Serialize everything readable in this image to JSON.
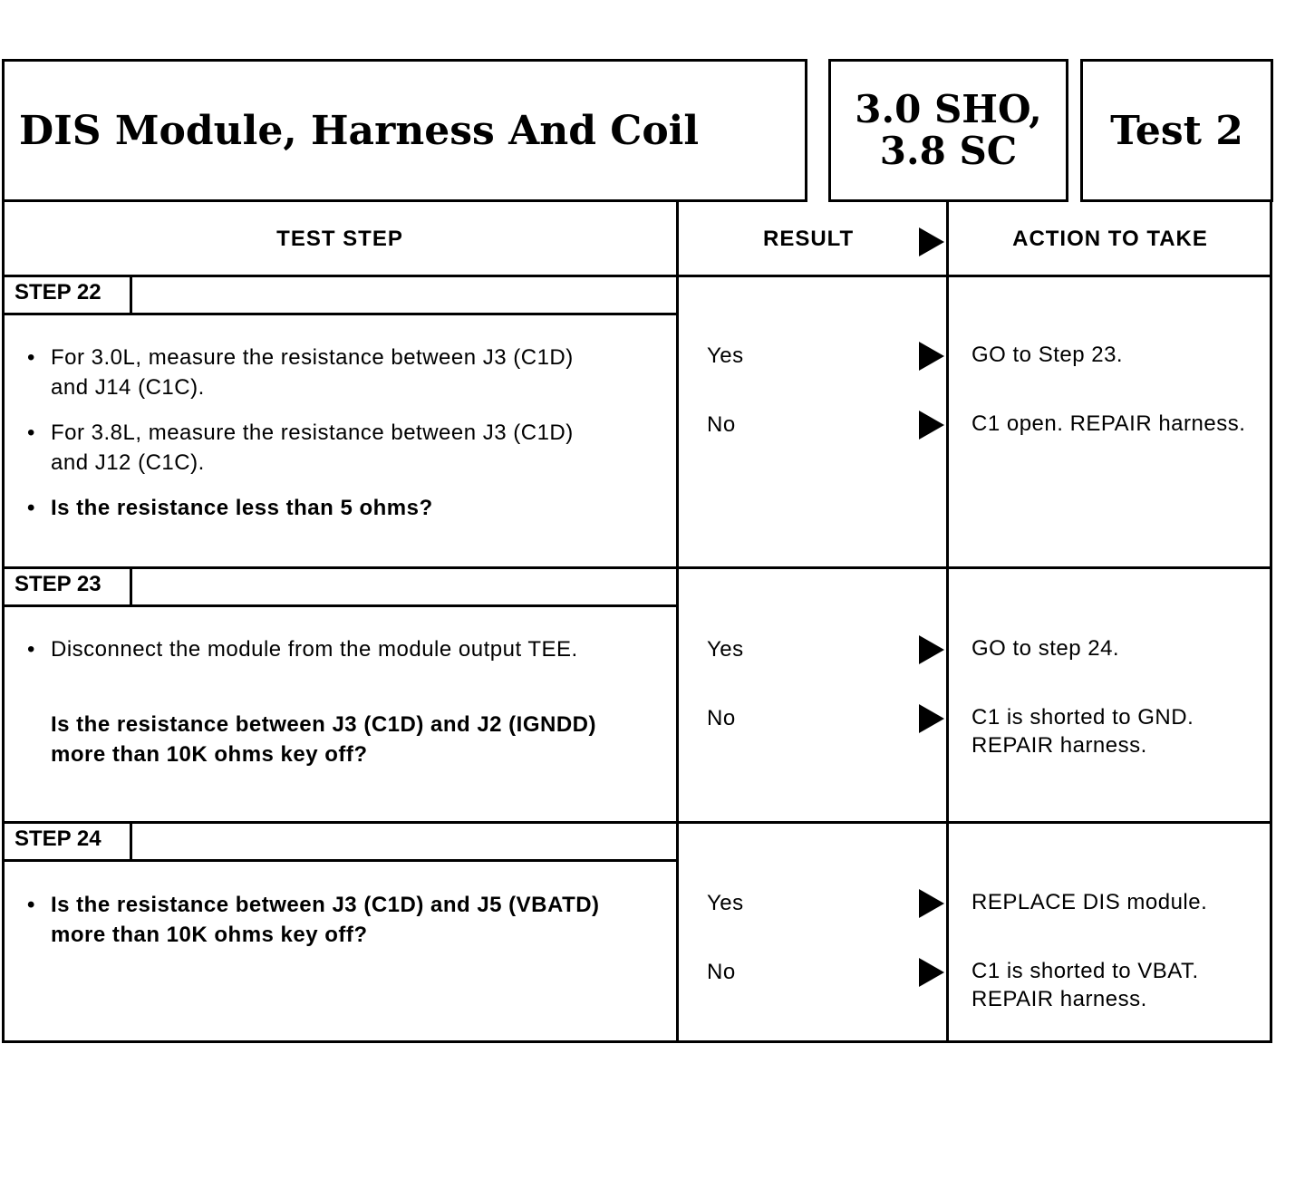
{
  "header": {
    "title": "DIS Module, Harness And Coil",
    "engine_line1": "3.0 SHO,",
    "engine_line2": "3.8 SC",
    "test": "Test 2"
  },
  "columns": {
    "test_step": "TEST STEP",
    "result": "RESULT",
    "action": "ACTION TO TAKE"
  },
  "steps": [
    {
      "label": "STEP 22",
      "items": [
        {
          "text": "For 3.0L, measure the resistance between J3 (C1D) and J14 (C1C).",
          "bold": false
        },
        {
          "text": "For 3.8L, measure the resistance between J3 (C1D) and J12 (C1C).",
          "bold": false
        },
        {
          "text": "Is the resistance less than 5 ohms?",
          "bold": true
        }
      ],
      "results": [
        {
          "result": "Yes",
          "action": "GO to Step 23."
        },
        {
          "result": "No",
          "action": "C1 open. REPAIR harness."
        }
      ]
    },
    {
      "label": "STEP 23",
      "items": [
        {
          "text": "Disconnect the module from the module output TEE.",
          "bold": false
        },
        {
          "text": "Is the resistance between J3 (C1D) and J2 (IGNDD) more than 10K ohms key off?",
          "bold": true
        }
      ],
      "results": [
        {
          "result": "Yes",
          "action": "GO to step 24."
        },
        {
          "result": "No",
          "action": "C1 is shorted to GND. REPAIR harness."
        }
      ]
    },
    {
      "label": "STEP 24",
      "items": [
        {
          "text": "Is the resistance between J3 (C1D) and J5 (VBATD) more than 10K ohms key off?",
          "bold": true
        }
      ],
      "results": [
        {
          "result": "Yes",
          "action": "REPLACE DIS module."
        },
        {
          "result": "No",
          "action": "C1 is shorted to VBAT. REPAIR harness."
        }
      ]
    }
  ]
}
